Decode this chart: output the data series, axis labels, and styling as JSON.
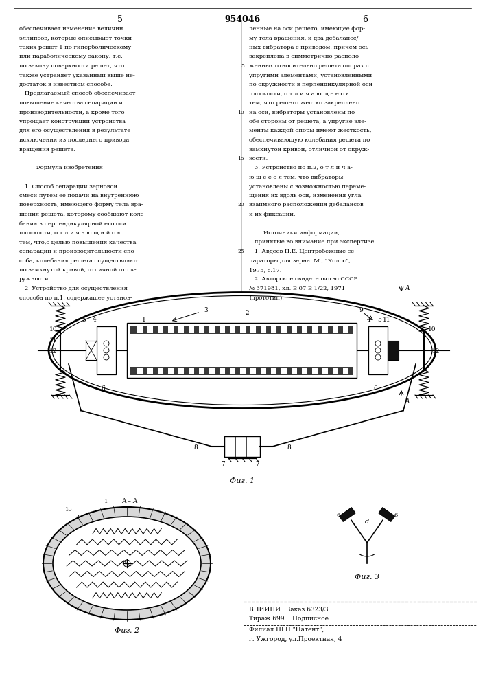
{
  "page_number_left": "5",
  "page_number_center": "954046",
  "page_number_right": "6",
  "col_left_text": [
    "обеспечивает изменение величин",
    "эллипсов, которые описывают точки",
    "таких решет 1 по гиперболическому",
    "или параболическому закону, т.е.",
    "по закону поверхности решет, что",
    "также устраняет указанный выше не-",
    "достаток в известном способе.",
    "   Предлагаемый способ обеспечивает",
    "повышение качества сепарации и",
    "производительности, а кроме того",
    "упрощает конструкции устройства",
    "для его осуществления в результате",
    "исключения из последнего привода",
    "вращения решета.",
    "",
    "         Формула изобретения",
    "",
    "   1. Способ сепарации зерновой",
    "смеси путем ее подачи на внутреннюю",
    "поверхность, имеющего форму тела вра-",
    "щения решета, которому сообщают коле-",
    "бания в перпендикулярной его оси",
    "плоскости, о т л и ч а ю щ и й с я",
    "тем, что,с целью повышения качества",
    "сепарации и производительности спо-",
    "соба, колебания решета осуществляют",
    "по замкнутой кривой, отличной от ок-",
    "ружности.",
    "   2. Устройство для осуществления",
    "способа по п.1, содержащее установ-"
  ],
  "col_right_text": [
    "ленные на оси решето, имеющее фор-",
    "му тела вращения, и два дебалансс/-",
    "ных вибратора с приводом, причем ось",
    "закреплена в симметрично располо-",
    "женных относительно решета опорах с",
    "упругими элементами, установленными",
    "по окружности в перпендикулярной оси",
    "плоскости, о т л и ч а ю щ е е с я",
    "тем, что решето жестко закреплено",
    "на оси, вибраторы установлены по",
    "обе стороны от решета, а упругие эле-",
    "менты каждой опоры имеют жесткость,",
    "обеспечивающую колебания решета по",
    "замкнутой кривой, отличной от окруж-",
    "ности.",
    "   3. Устройство по п.2, о т л и ч а-",
    "ю щ е е с я тем, что вибраторы",
    "установлены с возможностью переме-",
    "щения их вдоль оси, изменения угла",
    "взаимного расположения дебалансов",
    "и их фиксации.",
    "",
    "        Источники информации,",
    "   принятые во внимание при экспертизе",
    "   1. Авдеев Н.Е. Центробежные се-",
    "параторы для зерна. М., \"Колос\",",
    "1975, с.17.",
    "   2. Авторское свидетельство СССР",
    "№ 371981, кл. В 07 В 1/22, 1971",
    "(прототип)."
  ],
  "fig1_caption": "Фиг. 1",
  "fig2_caption": "Фиг. 2",
  "fig3_caption": "Фиг. 3",
  "vniiipi_line1": "ВНИИПИ   Заказ 6323/3",
  "vniiipi_line2": "Тираж 699    Подписное",
  "filial_line1": "Филиал ПГП \"Патент\",",
  "filial_line2": "г. Ужгород, ул.Проектная, 4",
  "bg_color": "#ffffff",
  "text_color": "#000000",
  "line_color": "#000000"
}
